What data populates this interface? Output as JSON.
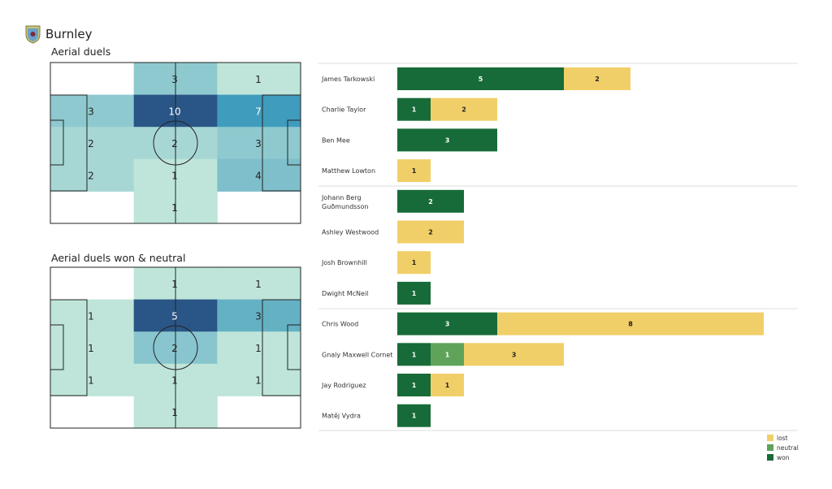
{
  "header": {
    "team": "Burnley"
  },
  "colors": {
    "won": "#176b38",
    "neutral": "#5fa35a",
    "lost": "#f1cf68",
    "heat_low": "#bfe5da",
    "heat_high": "#2a5587"
  },
  "chart_data": [
    {
      "type": "heatmap",
      "title": "Aerial duels",
      "grid_rows": 5,
      "grid_cols": 3,
      "values": [
        [
          0,
          3,
          1
        ],
        [
          3,
          10,
          7
        ],
        [
          2,
          2,
          3
        ],
        [
          2,
          1,
          4
        ],
        [
          0,
          1,
          0
        ]
      ]
    },
    {
      "type": "heatmap",
      "title": "Aerial duels won & neutral",
      "grid_rows": 5,
      "grid_cols": 3,
      "values": [
        [
          0,
          1,
          1
        ],
        [
          1,
          5,
          3
        ],
        [
          1,
          2,
          1
        ],
        [
          1,
          1,
          1
        ],
        [
          0,
          1,
          0
        ]
      ]
    },
    {
      "type": "bar",
      "orientation": "horizontal",
      "stacked": true,
      "categories": [
        "James  Tarkowski",
        "Charlie Taylor",
        "Ben Mee",
        "Matthew Lowton",
        "Johann  Berg\nGuðmundsson",
        "Ashley Westwood",
        "Josh Brownhill",
        "Dwight McNeil",
        "Chris Wood",
        "Gnaly Maxwell Cornet",
        "Jay Rodriguez",
        "Matěj Vydra"
      ],
      "groups_after": [
        3,
        7,
        11
      ],
      "series": [
        {
          "name": "won",
          "values": [
            5,
            1,
            3,
            0,
            2,
            0,
            0,
            1,
            3,
            1,
            1,
            1
          ]
        },
        {
          "name": "neutral",
          "values": [
            0,
            0,
            0,
            0,
            0,
            0,
            0,
            0,
            0,
            1,
            0,
            0
          ]
        },
        {
          "name": "lost",
          "values": [
            2,
            2,
            0,
            1,
            0,
            2,
            1,
            0,
            8,
            3,
            1,
            0
          ]
        }
      ],
      "legend": [
        "lost",
        "neutral",
        "won"
      ],
      "legend_position": "bottom-right"
    }
  ]
}
